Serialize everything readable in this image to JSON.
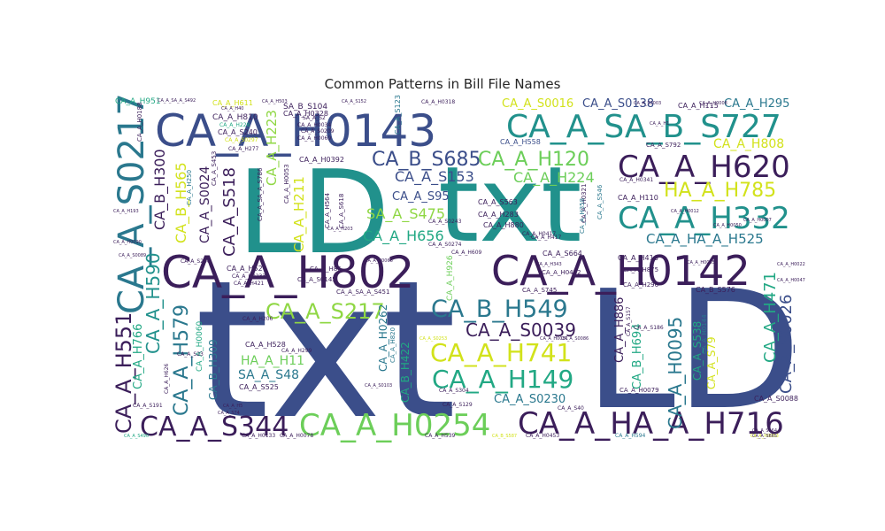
{
  "chart_data": {
    "type": "wordcloud",
    "title": "Common Patterns in Bill File Names",
    "colormap": "viridis",
    "words": [
      {
        "text": "txt",
        "color": "#3b4e8a"
      },
      {
        "text": "LD",
        "color": "#3b4e8a"
      },
      {
        "text": "LD",
        "color": "#21918c"
      },
      {
        "text": "txt",
        "color": "#21918c"
      },
      {
        "text": "CA_A_H0143",
        "color": "#3b4e8a"
      },
      {
        "text": "CA_A_H802",
        "color": "#3b1e5a"
      },
      {
        "text": "CA_A_H0142",
        "color": "#3b1e5a"
      },
      {
        "text": "CA_A_SA_B_S727",
        "color": "#21918c"
      },
      {
        "text": "CA_A_S0217",
        "color": "#2a788e"
      },
      {
        "text": "CA_A_H620",
        "color": "#3b1e5a"
      },
      {
        "text": "CA_A_H332",
        "color": "#21918c"
      },
      {
        "text": "CA_A_HA_A_H716",
        "color": "#3b1e5a"
      },
      {
        "text": "CA_A_H0254",
        "color": "#6cce59"
      },
      {
        "text": "CA_A_S344",
        "color": "#3b1e5a"
      },
      {
        "text": "CA_B_S685",
        "color": "#3b4e8a"
      },
      {
        "text": "CA_A_H120",
        "color": "#6cce59"
      },
      {
        "text": "CA_B_H549",
        "color": "#2a788e"
      },
      {
        "text": "CA_A_S217",
        "color": "#8fd744"
      },
      {
        "text": "CA_A_H741",
        "color": "#d2e21b"
      },
      {
        "text": "CA_A_H149",
        "color": "#22a884"
      },
      {
        "text": "HA_A_H785",
        "color": "#d2e21b"
      },
      {
        "text": "CA_A_H551",
        "color": "#3b1e5a"
      },
      {
        "text": "CA_A_H579",
        "color": "#2a788e"
      },
      {
        "text": "CA_A_H590",
        "color": "#21918c"
      },
      {
        "text": "CA_A_S0039",
        "color": "#3b1e5a"
      },
      {
        "text": "CA_A_H0095",
        "color": "#2a788e"
      },
      {
        "text": "CA_A_H471",
        "color": "#22a884"
      },
      {
        "text": "CA_A_S0026",
        "color": "#3b4e8a"
      },
      {
        "text": "CA_A_HA_A_H525",
        "color": "#2a788e"
      },
      {
        "text": "CA_A_S518",
        "color": "#3b1e5a"
      },
      {
        "text": "CA_A_S153",
        "color": "#3b4e8a"
      },
      {
        "text": "CA_A_H224",
        "color": "#6cce59"
      },
      {
        "text": "CA_A_H656",
        "color": "#22a884"
      },
      {
        "text": "SA_A_S475",
        "color": "#8fd744"
      },
      {
        "text": "CA_A_H808",
        "color": "#d2e21b"
      },
      {
        "text": "CA_A_S0016",
        "color": "#d2e21b"
      },
      {
        "text": "CA_A_S0138",
        "color": "#3b4e8a"
      },
      {
        "text": "CA_A_H295",
        "color": "#2a788e"
      },
      {
        "text": "CA_B_H300",
        "color": "#3b1e5a"
      },
      {
        "text": "CA_B_H565",
        "color": "#d2e21b"
      },
      {
        "text": "CA_A_S0024",
        "color": "#3b1e5a"
      },
      {
        "text": "CA_A_H223",
        "color": "#8fd744"
      },
      {
        "text": "CA_A_H211",
        "color": "#d2e21b"
      },
      {
        "text": "CA_A_S95",
        "color": "#3b4e8a"
      },
      {
        "text": "CA_A_H766",
        "color": "#22a884"
      },
      {
        "text": "HA_A_H11",
        "color": "#6cce59"
      },
      {
        "text": "SA_A_S48",
        "color": "#2a788e"
      },
      {
        "text": "CA_A_H886",
        "color": "#3b1e5a"
      },
      {
        "text": "CA_B_H694",
        "color": "#22a884"
      },
      {
        "text": "CA_A_S538",
        "color": "#22a884"
      },
      {
        "text": "CA_A_S79",
        "color": "#d2e21b"
      },
      {
        "text": "CA_A_H0262",
        "color": "#2a788e"
      },
      {
        "text": "CA_B_H422",
        "color": "#22a884"
      },
      {
        "text": "CA_A_S0230",
        "color": "#2a788e"
      },
      {
        "text": "CA_B_H309",
        "color": "#2a788e"
      },
      {
        "text": "CA_A_H0060",
        "color": "#22a884"
      },
      {
        "text": "CA_A_H951",
        "color": "#22a884"
      },
      {
        "text": "CA_A_H611",
        "color": "#d2e21b"
      },
      {
        "text": "CA_A_H810",
        "color": "#3b1e5a"
      },
      {
        "text": "SA_B_S104",
        "color": "#3b1e5a"
      },
      {
        "text": "CA_A_H0328",
        "color": "#3b1e5a"
      },
      {
        "text": "CA_A_H115",
        "color": "#3b1e5a"
      },
      {
        "text": "CA_A_S240",
        "color": "#3b1e5a"
      },
      {
        "text": "CA_A_H558",
        "color": "#3b4e8a"
      },
      {
        "text": "CA_A_H0392",
        "color": "#3b1e5a"
      },
      {
        "text": "CA_A_S123",
        "color": "#2a788e"
      },
      {
        "text": "CA_A_S563",
        "color": "#3b1e5a"
      },
      {
        "text": "CA_A_H283",
        "color": "#3b1e5a"
      },
      {
        "text": "CA_A_H880",
        "color": "#3b1e5a"
      },
      {
        "text": "CA_A_S664",
        "color": "#3b1e5a"
      },
      {
        "text": "CA_A_H416",
        "color": "#3b1e5a"
      },
      {
        "text": "CA_A_H110",
        "color": "#3b1e5a"
      },
      {
        "text": "CA_A_H528",
        "color": "#3b1e5a"
      },
      {
        "text": "CA_A_S525",
        "color": "#3b1e5a"
      },
      {
        "text": "CA_A_H52",
        "color": "#3b1e5a"
      },
      {
        "text": "CA_A_H0144",
        "color": "#2a788e"
      },
      {
        "text": "CA_B_S576",
        "color": "#3b1e5a"
      },
      {
        "text": "CA_A_S0088",
        "color": "#3b1e5a"
      },
      {
        "text": "CA_A_H0079",
        "color": "#3b1e5a"
      },
      {
        "text": "CA_A_H0133",
        "color": "#3b1e5a"
      },
      {
        "text": "CA_A_H0078",
        "color": "#3b1e5a"
      },
      {
        "text": "CA_A_H539",
        "color": "#3b1e5a"
      },
      {
        "text": "CA_A_H0453",
        "color": "#3b1e5a"
      },
      {
        "text": "CA_A_H594",
        "color": "#2a788e"
      },
      {
        "text": "CA_A_H0188",
        "color": "#3b1e5a"
      },
      {
        "text": "CA_A_H0321",
        "color": "#3b1e5a"
      },
      {
        "text": "CA_A_H358",
        "color": "#2a788e"
      },
      {
        "text": "CA_A_S546",
        "color": "#2a788e"
      },
      {
        "text": "CA_A_S618",
        "color": "#3b1e5a"
      },
      {
        "text": "CA_A_H564",
        "color": "#3b1e5a"
      },
      {
        "text": "CA_A_SA_A_S786",
        "color": "#3b1e5a"
      },
      {
        "text": "CA_A_H0053",
        "color": "#3b1e5a"
      },
      {
        "text": "CA_A_H250",
        "color": "#2a788e"
      },
      {
        "text": "CA_A_S453",
        "color": "#3b1e5a"
      },
      {
        "text": "CA_A_H820",
        "color": "#2a788e"
      },
      {
        "text": "CA_A_H926",
        "color": "#6cce59"
      },
      {
        "text": "CA_A_H0452",
        "color": "#3b1e5a"
      },
      {
        "text": "CA_A_H875",
        "color": "#3b1e5a"
      },
      {
        "text": "CA_A_H296",
        "color": "#3b1e5a"
      },
      {
        "text": "CA_A_S745",
        "color": "#3b1e5a"
      },
      {
        "text": "CA_A_SA_A_S451",
        "color": "#3b1e5a"
      },
      {
        "text": "CA_A_H86",
        "color": "#3b1e5a"
      },
      {
        "text": "CA_A_S0145",
        "color": "#3b1e5a"
      },
      {
        "text": "CA_A_S792",
        "color": "#3b1e5a"
      },
      {
        "text": "CA_A_H0341",
        "color": "#3b1e5a"
      },
      {
        "text": "CA_A_H417",
        "color": "#3b1e5a"
      },
      {
        "text": "CA_A_H0417",
        "color": "#3b1e5a"
      },
      {
        "text": "CA_A_H609",
        "color": "#3b1e5a"
      },
      {
        "text": "CA_A_S206",
        "color": "#3b1e5a"
      },
      {
        "text": "CA_A_H0233",
        "color": "#3b1e5a"
      },
      {
        "text": "CA_A_H421",
        "color": "#3b1e5a"
      },
      {
        "text": "CA_A_S0297",
        "color": "#d2e21b"
      },
      {
        "text": "CA_A_H0034",
        "color": "#3b1e5a"
      },
      {
        "text": "CA_A_S0209",
        "color": "#3b1e5a"
      },
      {
        "text": "CA_A_H0069",
        "color": "#3b1e5a"
      },
      {
        "text": "CA_A_H228",
        "color": "#22a884"
      },
      {
        "text": "CA_A_H277",
        "color": "#3b1e5a"
      },
      {
        "text": "SA_A_S2",
        "color": "#3b1e5a"
      },
      {
        "text": "CA_A_S0274",
        "color": "#3b1e5a"
      },
      {
        "text": "CA_A_S0243",
        "color": "#3b1e5a"
      },
      {
        "text": "CA_A_H0318",
        "color": "#3b1e5a"
      },
      {
        "text": "CA_A_S191",
        "color": "#3b1e5a"
      },
      {
        "text": "CA_A_S23",
        "color": "#3b1e5a"
      },
      {
        "text": "CA_A_H626",
        "color": "#3b1e5a"
      },
      {
        "text": "CA_A_H299",
        "color": "#3b1e5a"
      },
      {
        "text": "CA_A_H206",
        "color": "#3b1e5a"
      },
      {
        "text": "CA_A_S304",
        "color": "#3b1e5a"
      },
      {
        "text": "CA_A_S129",
        "color": "#3b1e5a"
      },
      {
        "text": "CA_A_S186",
        "color": "#3b1e5a"
      },
      {
        "text": "CA_A_S157",
        "color": "#3b1e5a"
      },
      {
        "text": "CA_A_S40",
        "color": "#3b1e5a"
      },
      {
        "text": "CA_A_S490",
        "color": "#22a884"
      },
      {
        "text": "CA_B_S587",
        "color": "#d2e21b"
      },
      {
        "text": "CA_A_S0253",
        "color": "#d2e21b"
      },
      {
        "text": "CA_A_H0063",
        "color": "#d2e21b"
      },
      {
        "text": "CA_A_H0081",
        "color": "#3b1e5a"
      },
      {
        "text": "CA_A_S74",
        "color": "#3b1e5a"
      },
      {
        "text": "CA_A_H5",
        "color": "#3b1e5a"
      },
      {
        "text": "CA_A_SA_A_S492",
        "color": "#3b1e5a"
      },
      {
        "text": "CA_A_H40",
        "color": "#3b1e5a"
      },
      {
        "text": "CA_A_H503",
        "color": "#3b1e5a"
      },
      {
        "text": "CA_A_S152",
        "color": "#3b1e5a"
      },
      {
        "text": "CA_A_H0012",
        "color": "#3b1e5a"
      },
      {
        "text": "CA_A_H0008",
        "color": "#3b1e5a"
      },
      {
        "text": "CA_A_S0003",
        "color": "#3b1e5a"
      },
      {
        "text": "CA_A_H343",
        "color": "#3b1e5a"
      },
      {
        "text": "CA_A_S0086",
        "color": "#3b1e5a"
      },
      {
        "text": "CA_A_S0103",
        "color": "#3b1e5a"
      },
      {
        "text": "CA_A_S0089",
        "color": "#3b1e5a"
      },
      {
        "text": "CA_A_H0066",
        "color": "#3b1e5a"
      },
      {
        "text": "CA_A_H203",
        "color": "#3b1e5a"
      },
      {
        "text": "CA_A_H0050",
        "color": "#3b1e5a"
      },
      {
        "text": "CA_A_H0007",
        "color": "#3b1e5a"
      },
      {
        "text": "CA_A_S665",
        "color": "#3b1e5a"
      },
      {
        "text": "CA_A_S164",
        "color": "#3b1e5a"
      },
      {
        "text": "CA_A_H1",
        "color": "#3b1e5a"
      },
      {
        "text": "CA_A_H193",
        "color": "#3b1e5a"
      },
      {
        "text": "CA_A_H0090",
        "color": "#3b1e5a"
      },
      {
        "text": "CA_A_H0085",
        "color": "#3b1e5a"
      },
      {
        "text": "CA_A_H0022",
        "color": "#3b1e5a"
      },
      {
        "text": "CA_A_H0047",
        "color": "#3b1e5a"
      }
    ]
  }
}
